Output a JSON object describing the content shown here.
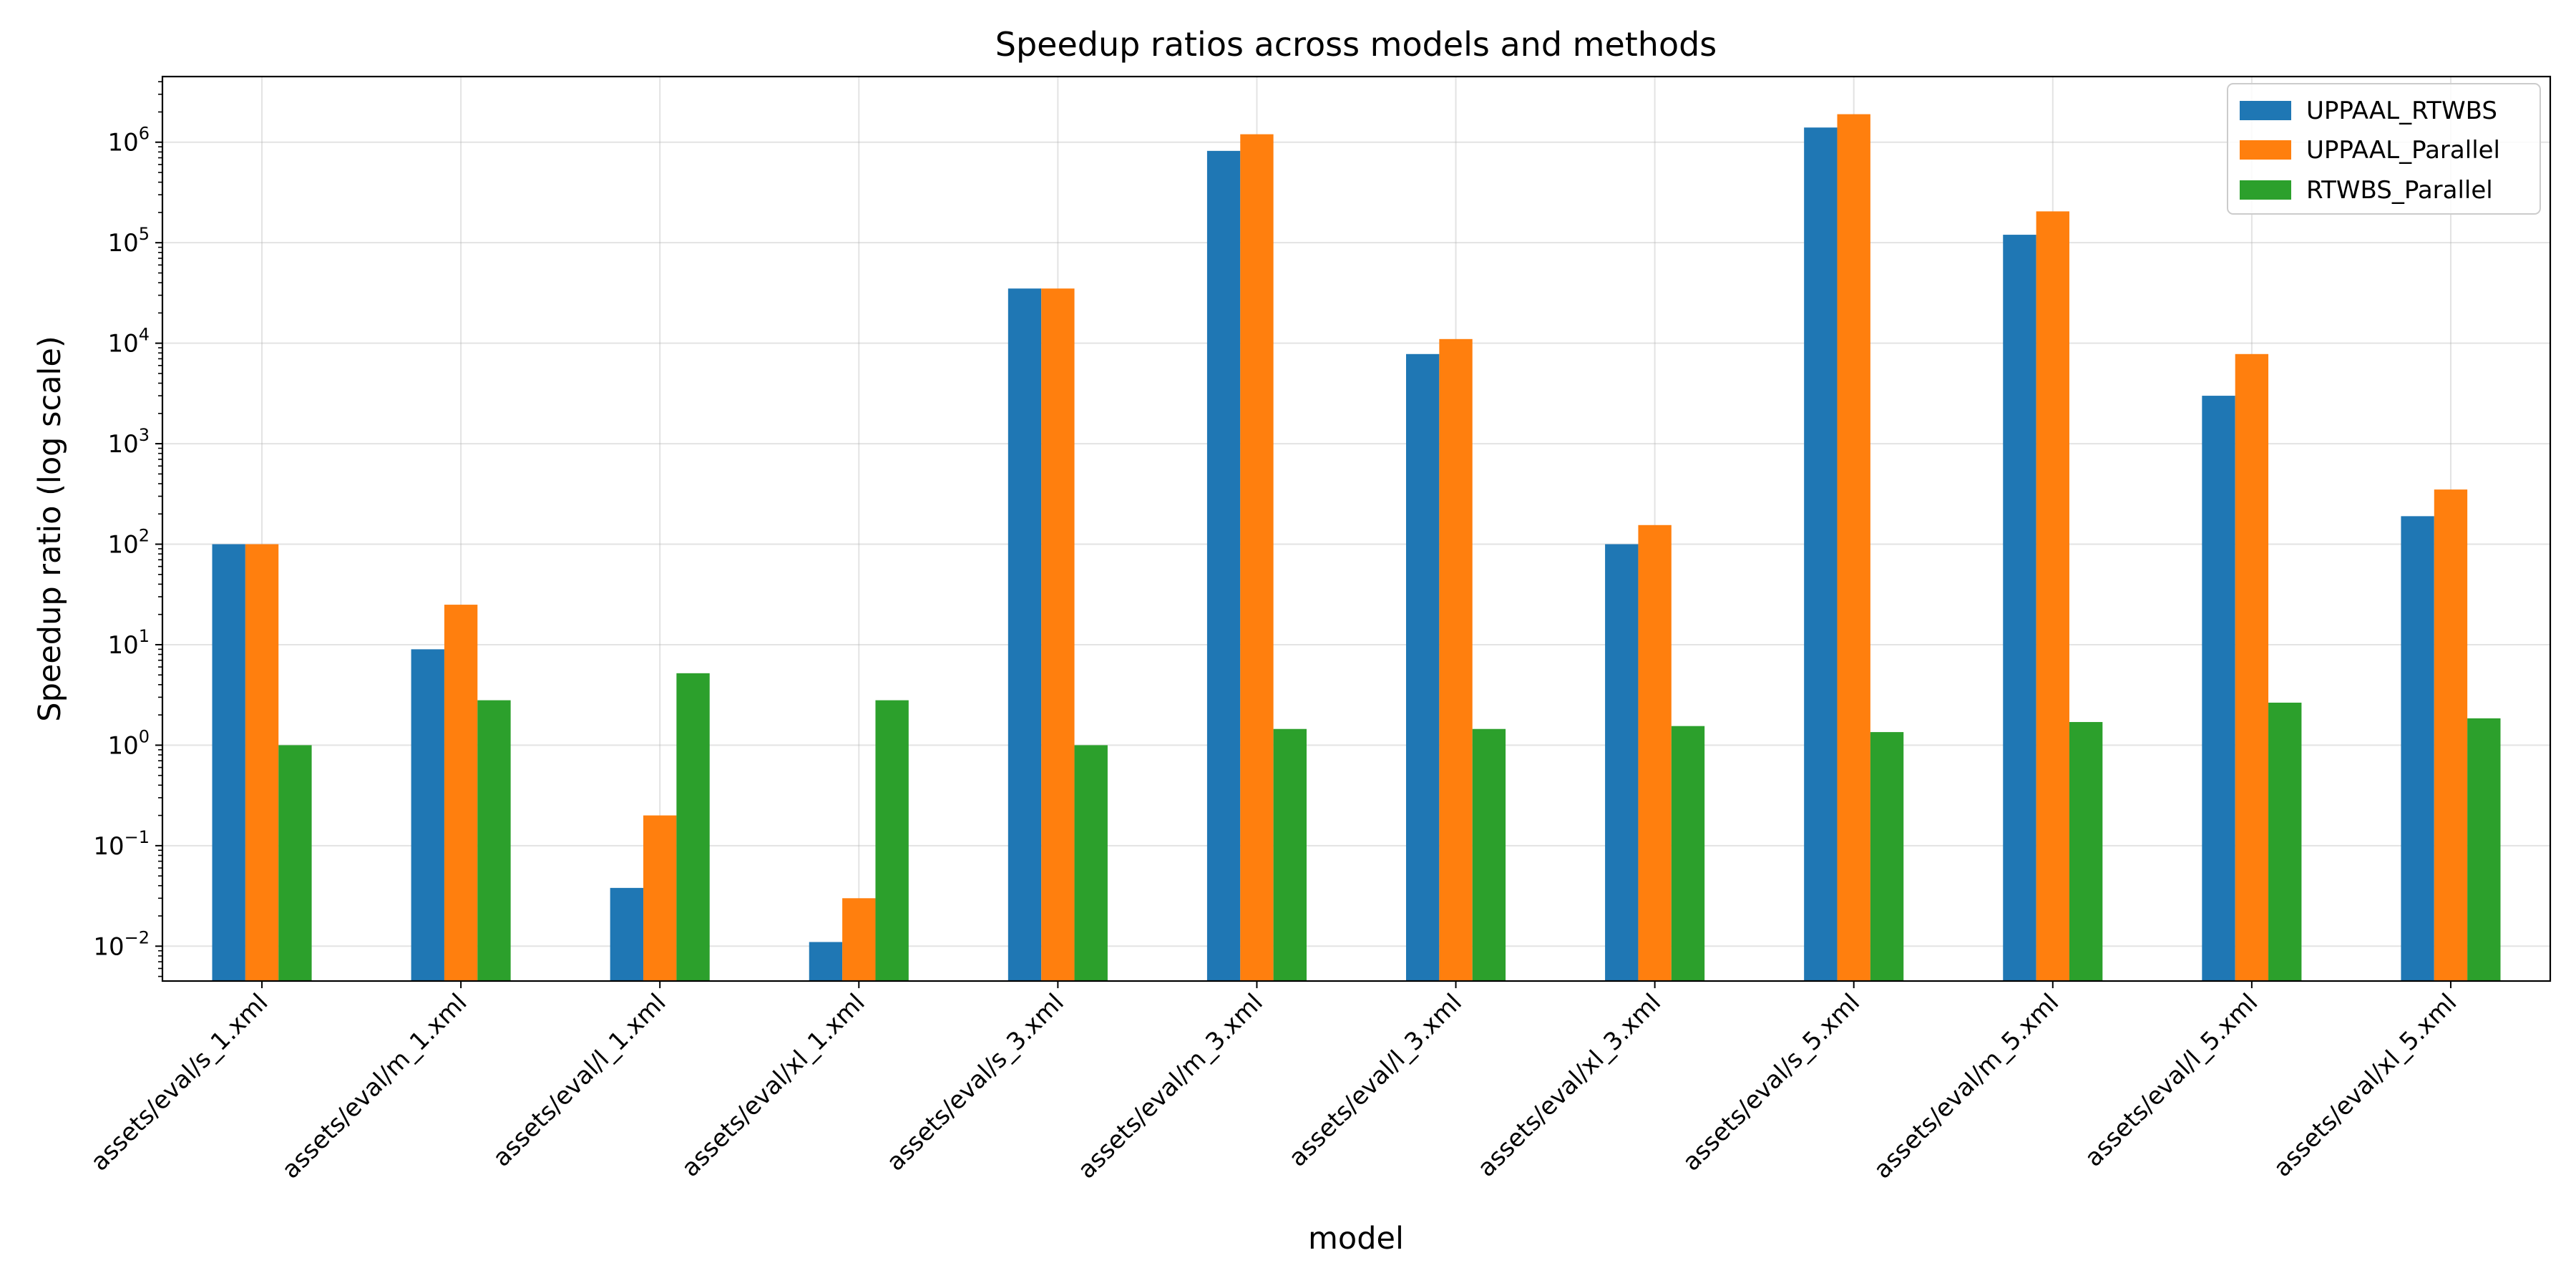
{
  "chart_data": {
    "type": "bar",
    "title": "Speedup ratios across models and methods",
    "xlabel": "model",
    "ylabel": "Speedup ratio (log scale)",
    "yscale": "log",
    "ylim": [
      0.0045,
      4500000
    ],
    "grid": true,
    "legend_position": "top-right",
    "categories": [
      "assets/eval/s_1.xml",
      "assets/eval/m_1.xml",
      "assets/eval/l_1.xml",
      "assets/eval/xl_1.xml",
      "assets/eval/s_3.xml",
      "assets/eval/m_3.xml",
      "assets/eval/l_3.xml",
      "assets/eval/xl_3.xml",
      "assets/eval/s_5.xml",
      "assets/eval/m_5.xml",
      "assets/eval/l_5.xml",
      "assets/eval/xl_5.xml"
    ],
    "yticks": [
      {
        "base": "10",
        "exp": "−2",
        "value": 0.01
      },
      {
        "base": "10",
        "exp": "−1",
        "value": 0.1
      },
      {
        "base": "10",
        "exp": "0",
        "value": 1
      },
      {
        "base": "10",
        "exp": "1",
        "value": 10
      },
      {
        "base": "10",
        "exp": "2",
        "value": 100
      },
      {
        "base": "10",
        "exp": "3",
        "value": 1000
      },
      {
        "base": "10",
        "exp": "4",
        "value": 10000
      },
      {
        "base": "10",
        "exp": "5",
        "value": 100000
      },
      {
        "base": "10",
        "exp": "6",
        "value": 1000000
      }
    ],
    "series": [
      {
        "name": "UPPAAL_RTWBS",
        "color": "#1f77b4",
        "values": [
          100,
          9,
          0.038,
          0.011,
          35000,
          820000,
          7800,
          100,
          1400000,
          120000,
          3000,
          190
        ]
      },
      {
        "name": "UPPAAL_Parallel",
        "color": "#ff7f0e",
        "values": [
          100,
          25,
          0.2,
          0.03,
          35000,
          1200000,
          11000,
          155,
          1900000,
          205000,
          7800,
          350
        ]
      },
      {
        "name": "RTWBS_Parallel",
        "color": "#2ca02c",
        "values": [
          1.0,
          2.8,
          5.2,
          2.8,
          1.0,
          1.45,
          1.45,
          1.55,
          1.35,
          1.7,
          2.65,
          1.85
        ]
      }
    ]
  }
}
